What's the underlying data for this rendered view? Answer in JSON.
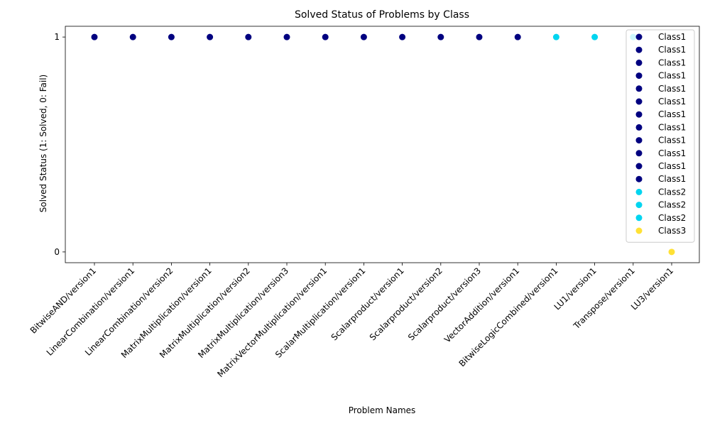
{
  "chart_data": {
    "type": "scatter",
    "title": "Solved Status of Problems by Class",
    "xlabel": "Problem Names",
    "ylabel": "Solved Status (1: Solved, 0: Fail)",
    "categories": [
      "BitwiseAND/version1",
      "LinearCombination/version1",
      "LinearCombination/version2",
      "MatrixMultiplication/version1",
      "MatrixMultiplication/version2",
      "MatrixMultiplication/version3",
      "MatrixVectorMultiplication/version1",
      "ScalarMultiplication/version1",
      "Scalarproduct/version1",
      "Scalarproduct/version2",
      "Scalarproduct/version3",
      "VectorAddition/version1",
      "BitwiseLogicCombined/version1",
      "LU1/version1",
      "Transpose/version1",
      "LU3/version1"
    ],
    "y_ticks": [
      0,
      1
    ],
    "y_tick_labels": [
      "0",
      "1"
    ],
    "ylim": [
      -0.05,
      1.05
    ],
    "grid": false,
    "legend_position": "upper-right",
    "colors": {
      "Class1": "#000080",
      "Class2": "#00d5f0",
      "Class3": "#ffe135"
    },
    "points": [
      {
        "category": "BitwiseAND/version1",
        "value": 1,
        "class": "Class1"
      },
      {
        "category": "LinearCombination/version1",
        "value": 1,
        "class": "Class1"
      },
      {
        "category": "LinearCombination/version2",
        "value": 1,
        "class": "Class1"
      },
      {
        "category": "MatrixMultiplication/version1",
        "value": 1,
        "class": "Class1"
      },
      {
        "category": "MatrixMultiplication/version2",
        "value": 1,
        "class": "Class1"
      },
      {
        "category": "MatrixMultiplication/version3",
        "value": 1,
        "class": "Class1"
      },
      {
        "category": "MatrixVectorMultiplication/version1",
        "value": 1,
        "class": "Class1"
      },
      {
        "category": "ScalarMultiplication/version1",
        "value": 1,
        "class": "Class1"
      },
      {
        "category": "Scalarproduct/version1",
        "value": 1,
        "class": "Class1"
      },
      {
        "category": "Scalarproduct/version2",
        "value": 1,
        "class": "Class1"
      },
      {
        "category": "Scalarproduct/version3",
        "value": 1,
        "class": "Class1"
      },
      {
        "category": "VectorAddition/version1",
        "value": 1,
        "class": "Class1"
      },
      {
        "category": "BitwiseLogicCombined/version1",
        "value": 1,
        "class": "Class2"
      },
      {
        "category": "LU1/version1",
        "value": 1,
        "class": "Class2"
      },
      {
        "category": "Transpose/version1",
        "value": 1,
        "class": "Class2"
      },
      {
        "category": "LU3/version1",
        "value": 0,
        "class": "Class3"
      }
    ],
    "legend": [
      "Class1",
      "Class1",
      "Class1",
      "Class1",
      "Class1",
      "Class1",
      "Class1",
      "Class1",
      "Class1",
      "Class1",
      "Class1",
      "Class1",
      "Class2",
      "Class2",
      "Class2",
      "Class3"
    ]
  }
}
